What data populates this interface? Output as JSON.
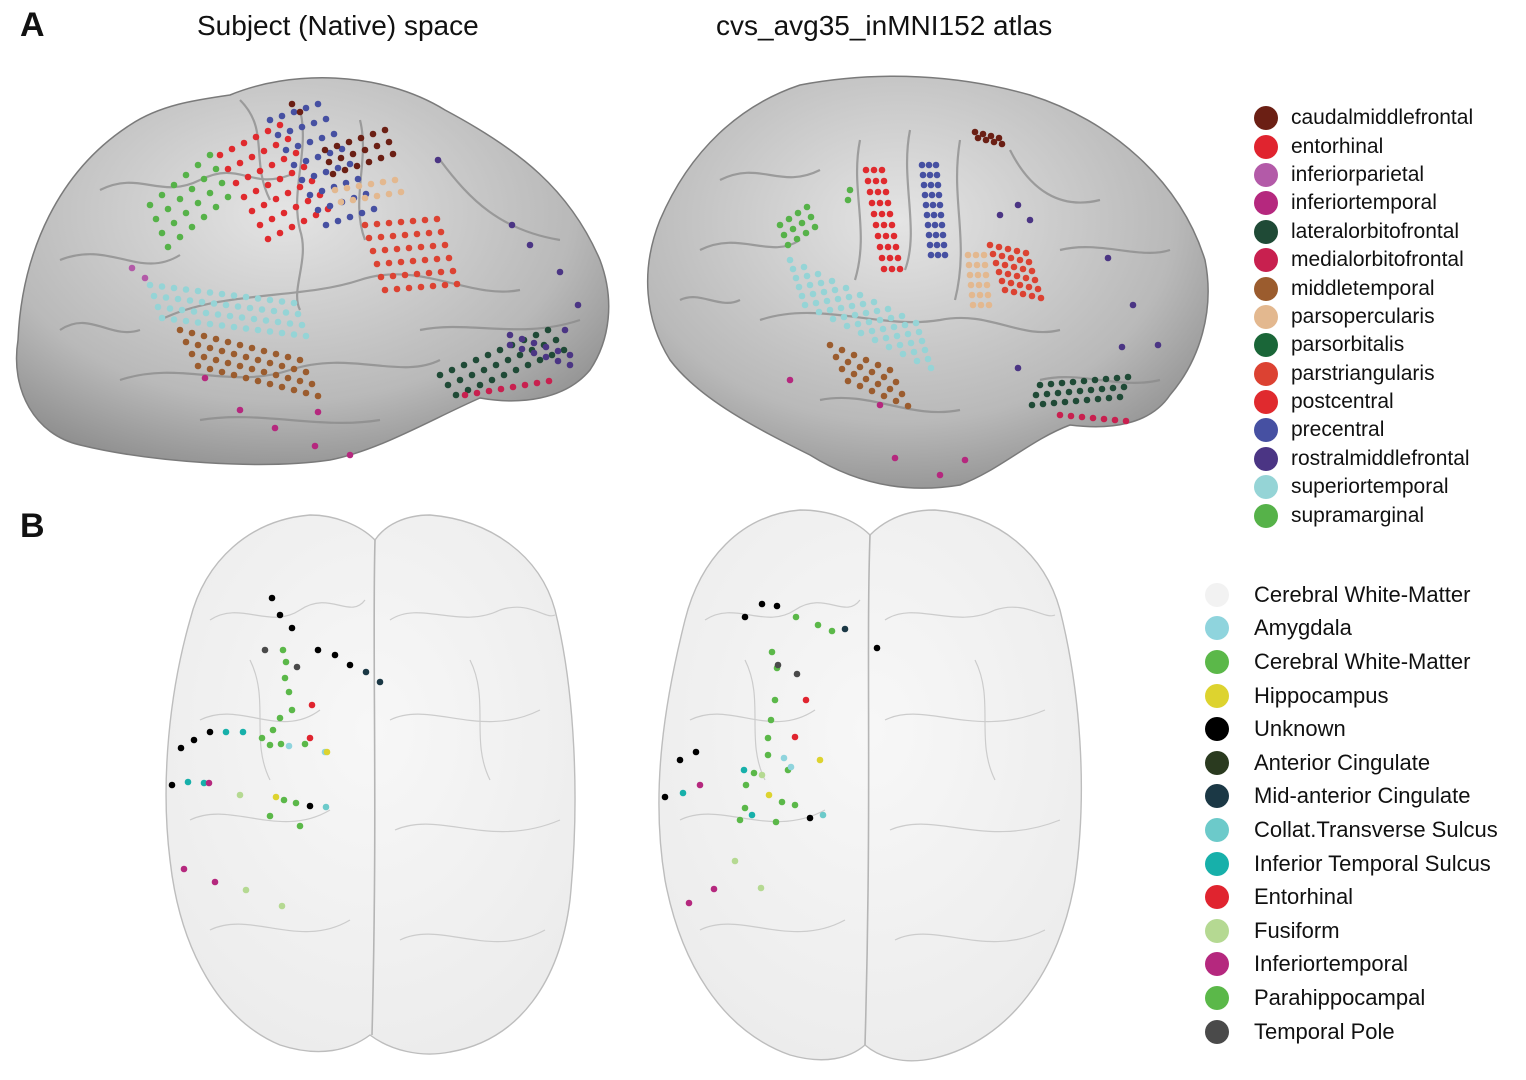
{
  "panels": {
    "a": {
      "letter": "A",
      "left_title": "Subject (Native) space",
      "right_title": "cvs_avg35_inMNI152 atlas"
    },
    "b": {
      "letter": "B"
    }
  },
  "legend_a": [
    {
      "label": "caudalmiddlefrontal",
      "color": "#6b1f14"
    },
    {
      "label": "entorhinal",
      "color": "#e0242f"
    },
    {
      "label": "inferiorparietal",
      "color": "#b35aa8"
    },
    {
      "label": "inferiortemporal",
      "color": "#b5287e"
    },
    {
      "label": "lateralorbitofrontal",
      "color": "#1f4a36"
    },
    {
      "label": "medialorbitofrontal",
      "color": "#c8204f"
    },
    {
      "label": "middletemporal",
      "color": "#9b5c2e"
    },
    {
      "label": "parsopercularis",
      "color": "#e3b88f"
    },
    {
      "label": "parsorbitalis",
      "color": "#1a6638"
    },
    {
      "label": "parstriangularis",
      "color": "#dc4232"
    },
    {
      "label": "postcentral",
      "color": "#e02a2e"
    },
    {
      "label": "precentral",
      "color": "#4650a2"
    },
    {
      "label": "rostralmiddlefrontal",
      "color": "#4b3584"
    },
    {
      "label": "superiortemporal",
      "color": "#95d4d6"
    },
    {
      "label": "supramarginal",
      "color": "#56b249"
    }
  ],
  "legend_b": [
    {
      "label": "Cerebral White-Matter",
      "color": "#f2f2f2"
    },
    {
      "label": "Amygdala",
      "color": "#8fd4dd"
    },
    {
      "label": "Cerebral White-Matter",
      "color": "#5bb849"
    },
    {
      "label": "Hippocampus",
      "color": "#ddd32f"
    },
    {
      "label": "Unknown",
      "color": "#000000"
    },
    {
      "label": "Anterior Cingulate",
      "color": "#2a3a1f"
    },
    {
      "label": "Mid-anterior Cingulate",
      "color": "#1b3845"
    },
    {
      "label": "Collat.Transverse Sulcus",
      "color": "#6ccaca"
    },
    {
      "label": "Inferior Temporal Sulcus",
      "color": "#17b0aa"
    },
    {
      "label": "Entorhinal",
      "color": "#e0242f"
    },
    {
      "label": "Fusiform",
      "color": "#b5d992"
    },
    {
      "label": "Inferiortemporal",
      "color": "#b5287e"
    },
    {
      "label": "Parahippocampal",
      "color": "#5bb849"
    },
    {
      "label": "Temporal Pole",
      "color": "#4a4a4a"
    }
  ]
}
